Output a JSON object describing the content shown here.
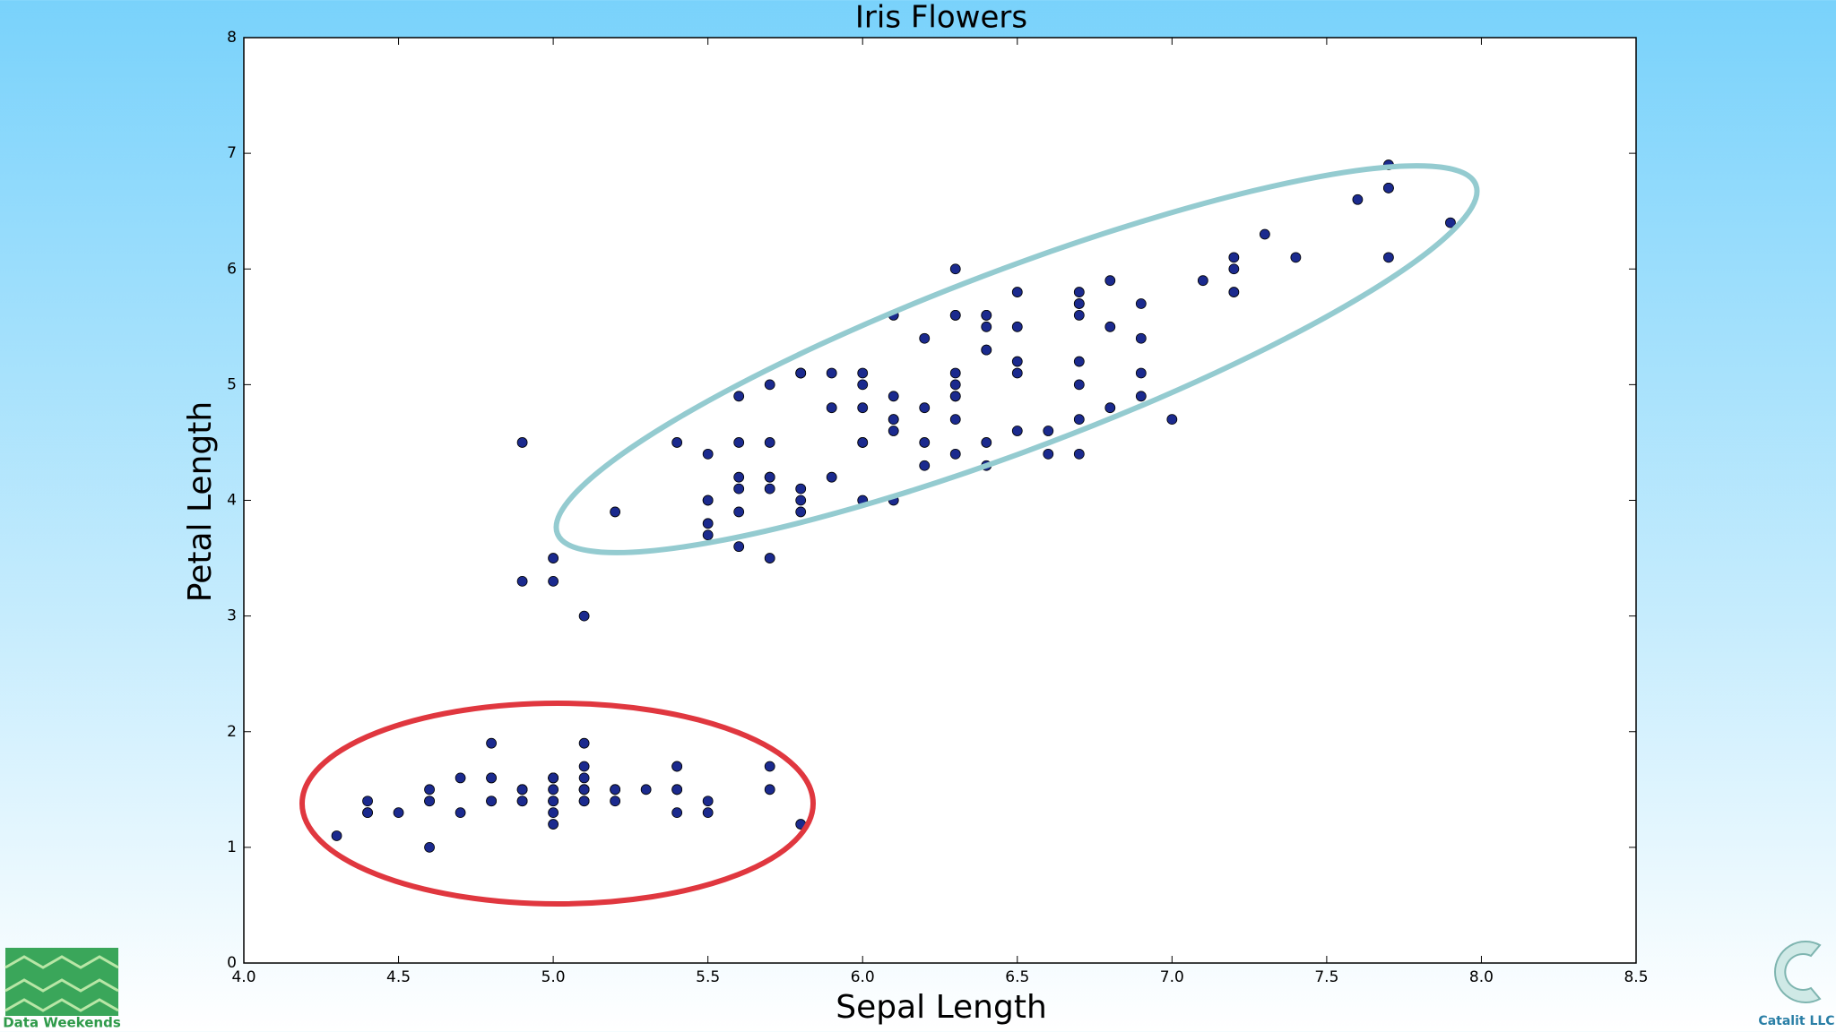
{
  "chart_data": {
    "type": "scatter",
    "title": "Iris Flowers",
    "xlabel": "Sepal Length",
    "ylabel": "Petal Length",
    "color": "#1b2a8e",
    "x": [
      5.1,
      4.9,
      4.7,
      4.6,
      5.0,
      5.4,
      4.6,
      5.0,
      4.4,
      4.9,
      5.4,
      4.8,
      4.8,
      4.3,
      5.8,
      5.7,
      5.4,
      5.1,
      5.7,
      5.1,
      5.4,
      5.1,
      4.6,
      5.1,
      4.8,
      5.0,
      5.0,
      5.2,
      5.2,
      4.7,
      4.8,
      5.4,
      5.2,
      5.5,
      4.9,
      5.0,
      5.5,
      4.9,
      4.4,
      5.1,
      5.0,
      4.5,
      4.4,
      5.0,
      5.1,
      4.8,
      5.1,
      4.6,
      5.3,
      5.0,
      7.0,
      6.4,
      6.9,
      5.5,
      6.5,
      5.7,
      6.3,
      4.9,
      6.6,
      5.2,
      5.0,
      5.9,
      6.0,
      6.1,
      5.6,
      6.7,
      5.6,
      5.8,
      6.2,
      5.6,
      5.9,
      6.1,
      6.3,
      6.1,
      6.4,
      6.6,
      6.8,
      6.7,
      6.0,
      5.7,
      5.5,
      5.5,
      5.8,
      6.0,
      5.4,
      6.0,
      6.7,
      6.3,
      5.6,
      5.5,
      5.5,
      6.1,
      5.8,
      5.0,
      5.6,
      5.7,
      5.7,
      6.2,
      5.1,
      5.7,
      6.3,
      5.8,
      7.1,
      6.3,
      6.5,
      7.6,
      4.9,
      7.3,
      6.7,
      7.2,
      6.5,
      6.4,
      6.8,
      5.7,
      5.8,
      6.4,
      6.5,
      7.7,
      7.7,
      6.0,
      6.9,
      5.6,
      7.7,
      6.3,
      6.7,
      7.2,
      6.2,
      6.1,
      6.4,
      7.2,
      7.4,
      7.9,
      6.4,
      6.3,
      6.1,
      7.7,
      6.3,
      6.4,
      6.0,
      6.9,
      6.7,
      6.9,
      5.8,
      6.8,
      6.7,
      6.7,
      6.3,
      6.5,
      6.2,
      5.9
    ],
    "values": [
      1.4,
      1.4,
      1.3,
      1.5,
      1.4,
      1.7,
      1.4,
      1.5,
      1.4,
      1.5,
      1.5,
      1.6,
      1.4,
      1.1,
      1.2,
      1.5,
      1.3,
      1.4,
      1.7,
      1.5,
      1.7,
      1.5,
      1.0,
      1.7,
      1.9,
      1.6,
      1.6,
      1.5,
      1.4,
      1.6,
      1.6,
      1.5,
      1.5,
      1.4,
      1.5,
      1.2,
      1.3,
      1.4,
      1.3,
      1.5,
      1.3,
      1.3,
      1.3,
      1.6,
      1.9,
      1.4,
      1.6,
      1.4,
      1.5,
      1.4,
      4.7,
      4.5,
      4.9,
      4.0,
      4.6,
      4.5,
      4.7,
      3.3,
      4.6,
      3.9,
      3.5,
      4.2,
      4.0,
      4.7,
      3.6,
      4.4,
      4.5,
      4.1,
      4.5,
      3.9,
      4.8,
      4.0,
      4.9,
      4.7,
      4.3,
      4.4,
      4.8,
      5.0,
      4.5,
      3.5,
      3.8,
      3.7,
      3.9,
      5.1,
      4.5,
      4.5,
      4.7,
      4.4,
      4.1,
      4.0,
      4.4,
      4.6,
      4.0,
      3.3,
      4.2,
      4.2,
      4.2,
      4.3,
      3.0,
      4.1,
      6.0,
      5.1,
      5.9,
      5.6,
      5.8,
      6.6,
      4.5,
      6.3,
      5.8,
      6.1,
      5.1,
      5.3,
      5.5,
      5.0,
      5.1,
      5.3,
      5.5,
      6.7,
      6.9,
      5.0,
      5.7,
      4.9,
      6.7,
      4.9,
      5.7,
      6.0,
      4.8,
      4.9,
      5.6,
      5.8,
      6.1,
      6.4,
      5.6,
      5.1,
      5.6,
      6.1,
      5.6,
      5.5,
      4.8,
      5.4,
      5.6,
      5.1,
      5.1,
      5.9,
      5.7,
      5.2,
      5.0,
      5.2,
      5.4,
      5.1
    ],
    "xlim": [
      4.0,
      8.5
    ],
    "ylim": [
      0,
      8
    ],
    "xticks": [
      {
        "value": 4.0,
        "label": "4.0"
      },
      {
        "value": 4.5,
        "label": "4.5"
      },
      {
        "value": 5.0,
        "label": "5.0"
      },
      {
        "value": 5.5,
        "label": "5.5"
      },
      {
        "value": 6.0,
        "label": "6.0"
      },
      {
        "value": 6.5,
        "label": "6.5"
      },
      {
        "value": 7.0,
        "label": "7.0"
      },
      {
        "value": 7.5,
        "label": "7.5"
      },
      {
        "value": 8.0,
        "label": "8.0"
      },
      {
        "value": 8.5,
        "label": "8.5"
      }
    ],
    "yticks": [
      0,
      1,
      2,
      3,
      4,
      5,
      6,
      7,
      8
    ],
    "grid": false
  },
  "logos": {
    "left": "Data Weekends",
    "right": "Catalit LLC"
  }
}
